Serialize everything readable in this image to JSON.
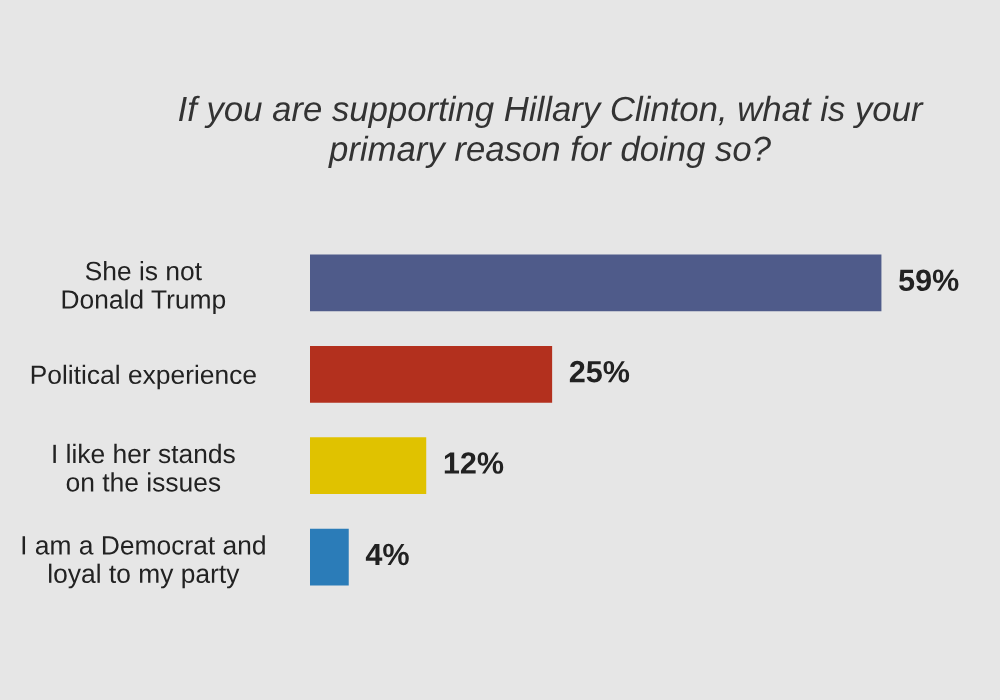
{
  "chart_data": {
    "type": "bar",
    "orientation": "horizontal",
    "title": "If you are supporting Hillary Clinton, what is your\nprimary reason for doing so?",
    "categories": [
      "She is not\nDonald Trump",
      "Political experience",
      "I like her stands\non the issues",
      "I am a Democrat and\nloyal to my party"
    ],
    "values": [
      59,
      25,
      12,
      4
    ],
    "colors": [
      "#4f5b8a",
      "#b3301e",
      "#e0c200",
      "#2b7cb8"
    ],
    "value_labels": [
      "59%",
      "25%",
      "12%",
      "4%"
    ],
    "tick_labels": "y"
  }
}
